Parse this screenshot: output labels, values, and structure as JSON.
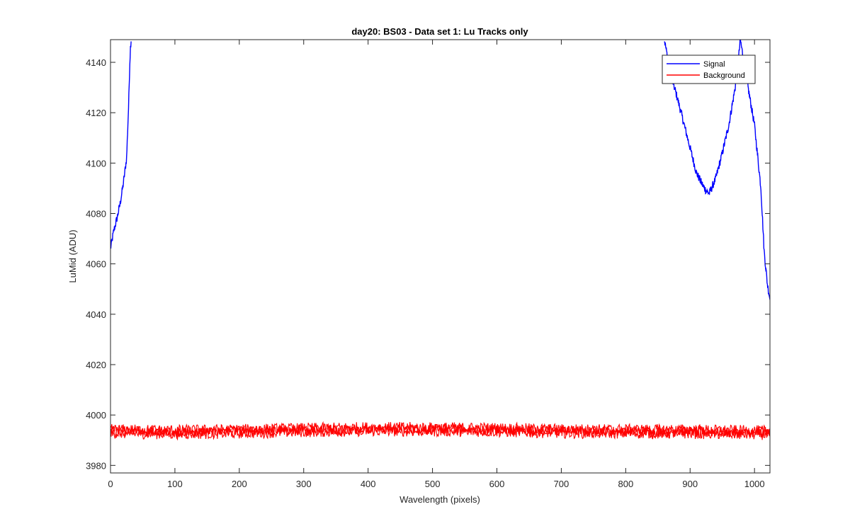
{
  "chart_data": {
    "type": "line",
    "title": "day20: BS03 - Data set 1: Lu Tracks only",
    "xlabel": "Wavelength (pixels)",
    "ylabel": "LuMid (ADU)",
    "xlim": [
      0,
      1024
    ],
    "ylim": [
      3977,
      4149
    ],
    "xticks": [
      0,
      100,
      200,
      300,
      400,
      500,
      600,
      700,
      800,
      900,
      1000
    ],
    "yticks": [
      3980,
      4000,
      4020,
      4040,
      4060,
      4080,
      4100,
      4120,
      4140
    ],
    "grid": false,
    "legend_position": "top-right",
    "series": [
      {
        "name": "Signal",
        "color": "#0000ff",
        "x": [
          0,
          5,
          10,
          15,
          20,
          25,
          28,
          30,
          31,
          32,
          860,
          870,
          880,
          890,
          900,
          910,
          920,
          925,
          930,
          935,
          940,
          950,
          960,
          970,
          975,
          978,
          990,
          1000,
          1010,
          1015,
          1020,
          1024
        ],
        "y": [
          4066,
          4073,
          4078,
          4084,
          4092,
          4102,
          4122,
          4140,
          4146,
          4149,
          4149,
          4135,
          4126,
          4116,
          4106,
          4096,
          4091,
          4089,
          4088,
          4091,
          4094,
          4104,
          4115,
          4130,
          4141,
          4149,
          4130,
          4115,
          4090,
          4065,
          4052,
          4046
        ]
      },
      {
        "name": "Background",
        "color": "#ff0000",
        "x": [
          0,
          100,
          200,
          300,
          400,
          500,
          600,
          700,
          800,
          900,
          1000,
          1024
        ],
        "y": [
          3993.5,
          3993.2,
          3993.5,
          3994.0,
          3994.4,
          3994.3,
          3994.1,
          3993.6,
          3993.5,
          3993.4,
          3993.0,
          3993.0
        ]
      }
    ]
  }
}
